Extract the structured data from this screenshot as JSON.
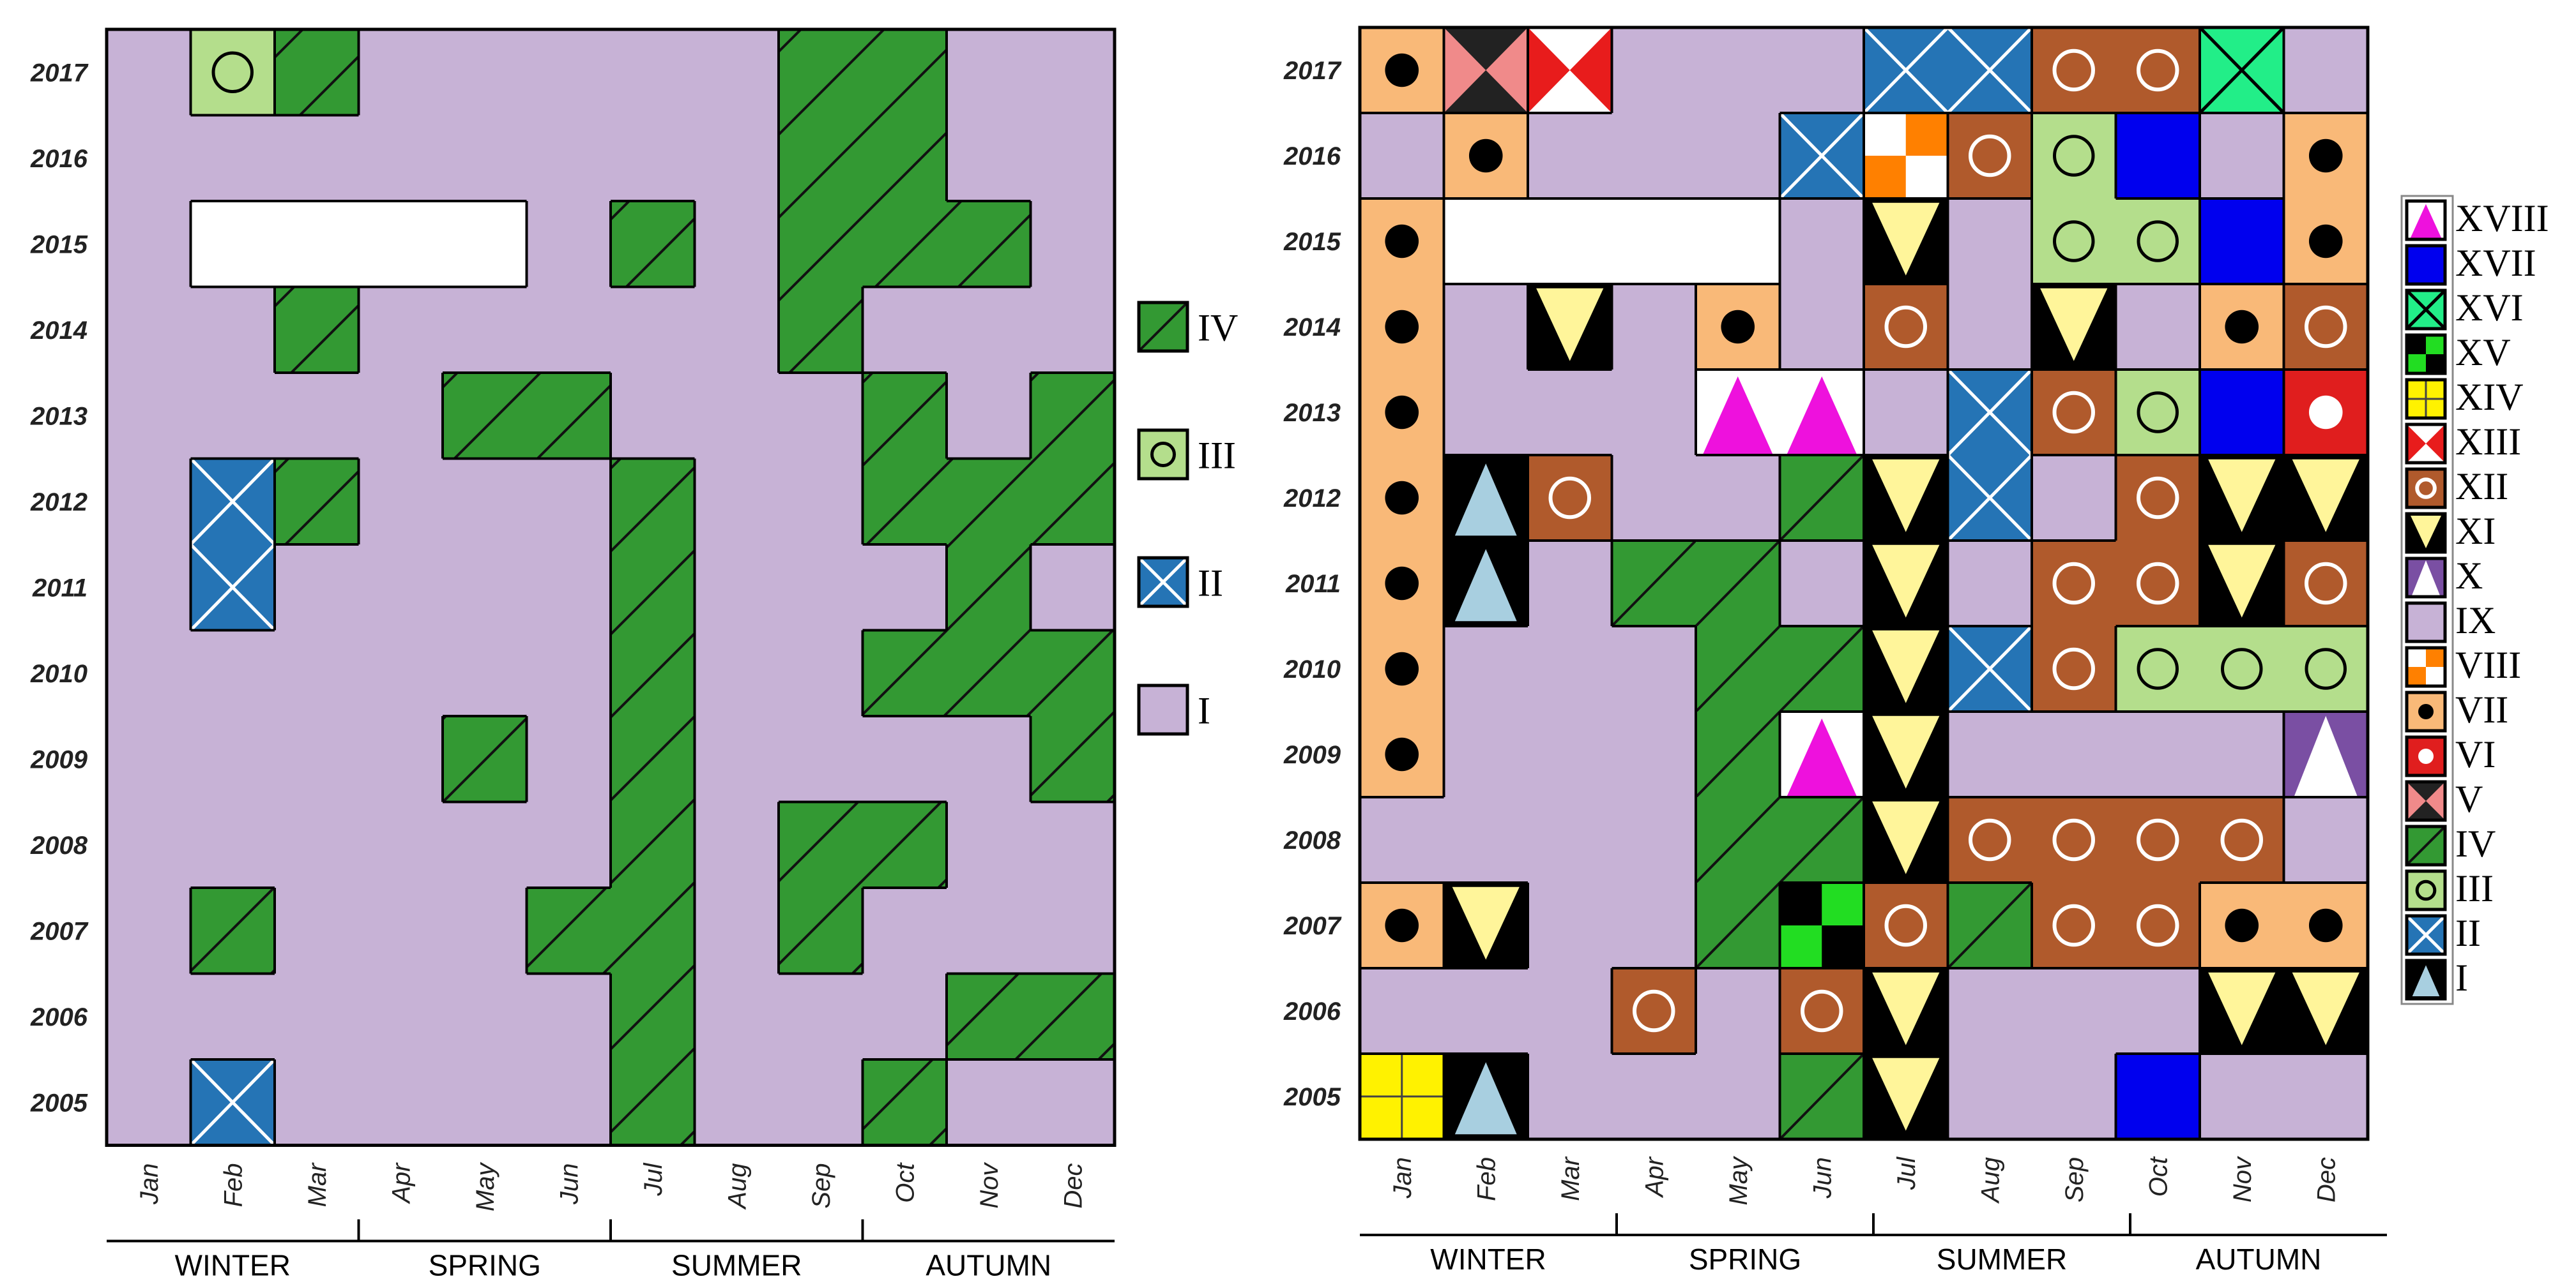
{
  "palette": {
    "I": "#c7b2d6",
    "II": "#2574b5",
    "III": "#b4de8c",
    "IV": "#339933",
    "V": "#f08a8a",
    "VI": "#e01e1e",
    "VII": "#f9b978",
    "VIII": "#ff8000",
    "IX": "#c7b2d6",
    "X": "#7a4fa3",
    "XI": "#fff59a",
    "XII": "#b05a2c",
    "XIII": "#e81c1c",
    "XIV": "#fff200",
    "XV": "#22dd22",
    "XVI": "#22ee88",
    "XVII": "#0000ee",
    "XVIII": "#ee11dd",
    "blank": "#ffffff"
  },
  "chart_data": [
    {
      "type": "heatmap",
      "title": "",
      "xlabel": "",
      "ylabel": "",
      "months": [
        "Jan",
        "Feb",
        "Mar",
        "Apr",
        "May",
        "Jun",
        "Jul",
        "Aug",
        "Sep",
        "Oct",
        "Nov",
        "Dec"
      ],
      "years": [
        "2017",
        "2016",
        "2015",
        "2014",
        "2013",
        "2012",
        "2011",
        "2010",
        "2009",
        "2008",
        "2007",
        "2006",
        "2005"
      ],
      "seasons": [
        "WINTER",
        "SPRING",
        "SUMMER",
        "AUTUMN"
      ],
      "legend": [
        "IV",
        "III",
        "II",
        "I"
      ],
      "legend_position": "right",
      "grid": [
        [
          "I",
          "III",
          "IV",
          "I",
          "I",
          "I",
          "I",
          "I",
          "IV",
          "IV",
          "I",
          "I"
        ],
        [
          "I",
          "I",
          "I",
          "I",
          "I",
          "I",
          "I",
          "I",
          "IV",
          "IV",
          "I",
          "I"
        ],
        [
          "I",
          "blank",
          "blank",
          "blank",
          "blank",
          "I",
          "IV",
          "I",
          "IV",
          "IV",
          "IV",
          "I"
        ],
        [
          "I",
          "I",
          "IV",
          "I",
          "I",
          "I",
          "I",
          "I",
          "IV",
          "I",
          "I",
          "I"
        ],
        [
          "I",
          "I",
          "I",
          "I",
          "IV",
          "IV",
          "I",
          "I",
          "I",
          "IV",
          "I",
          "IV"
        ],
        [
          "I",
          "II",
          "IV",
          "I",
          "I",
          "I",
          "IV",
          "I",
          "I",
          "IV",
          "IV",
          "IV"
        ],
        [
          "I",
          "II",
          "I",
          "I",
          "I",
          "I",
          "IV",
          "I",
          "I",
          "I",
          "IV",
          "I"
        ],
        [
          "I",
          "I",
          "I",
          "I",
          "I",
          "I",
          "IV",
          "I",
          "I",
          "IV",
          "IV",
          "IV"
        ],
        [
          "I",
          "I",
          "I",
          "I",
          "IV",
          "I",
          "IV",
          "I",
          "I",
          "I",
          "I",
          "IV"
        ],
        [
          "I",
          "I",
          "I",
          "I",
          "I",
          "I",
          "IV",
          "I",
          "IV",
          "IV",
          "I",
          "I"
        ],
        [
          "I",
          "IV",
          "I",
          "I",
          "I",
          "IV",
          "IV",
          "I",
          "IV",
          "I",
          "I",
          "I"
        ],
        [
          "I",
          "I",
          "I",
          "I",
          "I",
          "I",
          "IV",
          "I",
          "I",
          "I",
          "IV",
          "IV"
        ],
        [
          "I",
          "II",
          "I",
          "I",
          "I",
          "I",
          "IV",
          "I",
          "I",
          "IV",
          "I",
          "I"
        ]
      ]
    },
    {
      "type": "heatmap",
      "title": "",
      "xlabel": "",
      "ylabel": "",
      "months": [
        "Jan",
        "Feb",
        "Mar",
        "Apr",
        "May",
        "Jun",
        "Jul",
        "Aug",
        "Sep",
        "Oct",
        "Nov",
        "Dec"
      ],
      "years": [
        "2017",
        "2016",
        "2015",
        "2014",
        "2013",
        "2012",
        "2011",
        "2010",
        "2009",
        "2008",
        "2007",
        "2006",
        "2005"
      ],
      "seasons": [
        "WINTER",
        "SPRING",
        "SUMMER",
        "AUTUMN"
      ],
      "legend": [
        "XVIII",
        "XVII",
        "XVI",
        "XV",
        "XIV",
        "XIII",
        "XII",
        "XI",
        "X",
        "IX",
        "VIII",
        "VII",
        "VI",
        "V",
        "IV",
        "III",
        "II",
        "I"
      ],
      "legend_position": "right",
      "grid": [
        [
          "VII",
          "V",
          "XIII",
          "IX",
          "IX",
          "IX",
          "II",
          "II",
          "XII",
          "XII",
          "XVI",
          "IX"
        ],
        [
          "IX",
          "VII",
          "IX",
          "IX",
          "IX",
          "II",
          "VIII",
          "XII",
          "III",
          "XVII",
          "IX",
          "VII"
        ],
        [
          "VII",
          "blank",
          "blank",
          "blank",
          "blank",
          "IX",
          "XI",
          "IX",
          "III",
          "III",
          "XVII",
          "VII"
        ],
        [
          "VII",
          "IX",
          "XI",
          "IX",
          "VII",
          "IX",
          "XII",
          "IX",
          "XI",
          "IX",
          "VII",
          "XII"
        ],
        [
          "VII",
          "IX",
          "IX",
          "IX",
          "XVIII",
          "XVIII",
          "IX",
          "II",
          "XII",
          "III",
          "XVII",
          "VI"
        ],
        [
          "VII",
          "I",
          "XII",
          "IX",
          "IX",
          "IV",
          "XI",
          "II",
          "IX",
          "XII",
          "XI",
          "XI"
        ],
        [
          "VII",
          "I",
          "IX",
          "IV",
          "IV",
          "IX",
          "XI",
          "IX",
          "XII",
          "XII",
          "XI",
          "XII"
        ],
        [
          "VII",
          "IX",
          "IX",
          "IX",
          "IV",
          "IV",
          "XI",
          "II",
          "XII",
          "III",
          "III",
          "III"
        ],
        [
          "VII",
          "IX",
          "IX",
          "IX",
          "IV",
          "XVIII",
          "XI",
          "IX",
          "IX",
          "IX",
          "IX",
          "X"
        ],
        [
          "IX",
          "IX",
          "IX",
          "IX",
          "IV",
          "IV",
          "XI",
          "XII",
          "XII",
          "XII",
          "XII",
          "IX"
        ],
        [
          "VII",
          "XI",
          "IX",
          "IX",
          "IV",
          "XV",
          "XII",
          "IV",
          "XII",
          "XII",
          "VII",
          "VII"
        ],
        [
          "IX",
          "IX",
          "IX",
          "XII",
          "IX",
          "XII",
          "XI",
          "IX",
          "IX",
          "IX",
          "XI",
          "XI"
        ],
        [
          "XIV",
          "I",
          "IX",
          "IX",
          "IX",
          "IV",
          "XI",
          "IX",
          "IX",
          "XVII",
          "IX",
          "IX"
        ]
      ]
    }
  ]
}
